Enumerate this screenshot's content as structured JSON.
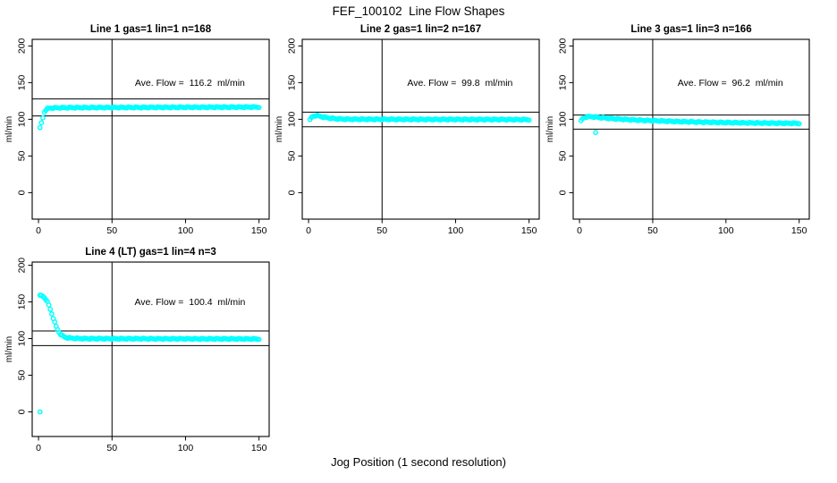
{
  "figure": {
    "title": "FEF_100102  Line Flow Shapes",
    "xlabel": "Jog Position (1 second resolution)",
    "background_color": "#ffffff",
    "axis_color": "#000000",
    "point_color": "#00ffff"
  },
  "chart_data": [
    {
      "type": "scatter",
      "title": "Line 1 gas=1 lin=1 n=168",
      "n": 168,
      "ave_flow_ml_min": 116.2,
      "annotation": "Ave. Flow =  116.2  ml/min",
      "annotation_pos": {
        "x": 103,
        "y": 150
      },
      "ylabel": "ml/min",
      "xticks": [
        0,
        50,
        100,
        150
      ],
      "yticks": [
        0,
        50,
        100,
        150,
        200
      ],
      "xlim": [
        -4.3,
        156.9
      ],
      "ylim": [
        -36.1,
        209.0
      ],
      "grid": false,
      "vline_x": 50,
      "hlines": [
        104.6,
        127.8
      ],
      "series_keypoints": [
        [
          1,
          88
        ],
        [
          3,
          102
        ],
        [
          4,
          110
        ],
        [
          5,
          113
        ],
        [
          6,
          114.5
        ],
        [
          8,
          115.3
        ],
        [
          10,
          115.6
        ],
        [
          15,
          115.8
        ],
        [
          20,
          115.9
        ],
        [
          30,
          116.0
        ],
        [
          40,
          116.1
        ],
        [
          50,
          116.1
        ],
        [
          60,
          116.2
        ],
        [
          70,
          116.2
        ],
        [
          80,
          116.3
        ],
        [
          90,
          116.3
        ],
        [
          100,
          116.4
        ],
        [
          110,
          116.4
        ],
        [
          120,
          116.5
        ],
        [
          130,
          116.5
        ],
        [
          140,
          116.6
        ],
        [
          150,
          116.7
        ]
      ],
      "outliers": []
    },
    {
      "type": "scatter",
      "title": "Line 2 gas=1 lin=2 n=167",
      "n": 167,
      "ave_flow_ml_min": 99.8,
      "annotation": "Ave. Flow =  99.8  ml/min",
      "annotation_pos": {
        "x": 103,
        "y": 150
      },
      "ylabel": "ml/min",
      "xticks": [
        0,
        50,
        100,
        150
      ],
      "yticks": [
        0,
        50,
        100,
        150,
        200
      ],
      "xlim": [
        -4.3,
        156.9
      ],
      "ylim": [
        -36.1,
        209.0
      ],
      "grid": false,
      "vline_x": 50,
      "hlines": [
        89.8,
        109.8
      ],
      "series_keypoints": [
        [
          1,
          99
        ],
        [
          2,
          102.5
        ],
        [
          3,
          104
        ],
        [
          4,
          104.8
        ],
        [
          5,
          105
        ],
        [
          6,
          104.8
        ],
        [
          7,
          104.4
        ],
        [
          8,
          104
        ],
        [
          9,
          103.5
        ],
        [
          10,
          103.1
        ],
        [
          12,
          102.4
        ],
        [
          14,
          101.8
        ],
        [
          16,
          101.3
        ],
        [
          18,
          100.9
        ],
        [
          20,
          100.6
        ],
        [
          25,
          100.2
        ],
        [
          30,
          100.1
        ],
        [
          40,
          100.0
        ],
        [
          50,
          100.0
        ],
        [
          60,
          99.9
        ],
        [
          70,
          99.9
        ],
        [
          80,
          99.8
        ],
        [
          90,
          99.8
        ],
        [
          100,
          99.8
        ],
        [
          110,
          99.7
        ],
        [
          120,
          99.7
        ],
        [
          130,
          99.7
        ],
        [
          140,
          99.6
        ],
        [
          150,
          99.6
        ]
      ],
      "outliers": []
    },
    {
      "type": "scatter",
      "title": "Line 3 gas=1 lin=3 n=166",
      "n": 166,
      "ave_flow_ml_min": 96.2,
      "annotation": "Ave. Flow =  96.2  ml/min",
      "annotation_pos": {
        "x": 103,
        "y": 150
      },
      "ylabel": "ml/min",
      "xticks": [
        0,
        50,
        100,
        150
      ],
      "yticks": [
        0,
        50,
        100,
        150,
        200
      ],
      "xlim": [
        -4.3,
        156.9
      ],
      "ylim": [
        -36.1,
        209.0
      ],
      "grid": false,
      "vline_x": 50,
      "hlines": [
        86.6,
        105.8
      ],
      "series_keypoints": [
        [
          1,
          97.5
        ],
        [
          2,
          100.5
        ],
        [
          3,
          102
        ],
        [
          4,
          102.8
        ],
        [
          5,
          103.3
        ],
        [
          7,
          103.6
        ],
        [
          9,
          103.4
        ],
        [
          11,
          103
        ],
        [
          13,
          102.6
        ],
        [
          15,
          102.2
        ],
        [
          20,
          101.3
        ],
        [
          25,
          100.6
        ],
        [
          30,
          100.0
        ],
        [
          35,
          99.4
        ],
        [
          40,
          98.9
        ],
        [
          45,
          98.5
        ],
        [
          50,
          98.1
        ],
        [
          55,
          97.8
        ],
        [
          60,
          97.4
        ],
        [
          65,
          97.1
        ],
        [
          70,
          96.8
        ],
        [
          75,
          96.6
        ],
        [
          80,
          96.3
        ],
        [
          85,
          96.1
        ],
        [
          90,
          95.9
        ],
        [
          95,
          95.7
        ],
        [
          100,
          95.6
        ],
        [
          105,
          95.4
        ],
        [
          110,
          95.3
        ],
        [
          115,
          95.1
        ],
        [
          120,
          95.0
        ],
        [
          125,
          94.9
        ],
        [
          130,
          94.8
        ],
        [
          135,
          94.7
        ],
        [
          140,
          94.6
        ],
        [
          145,
          94.6
        ],
        [
          150,
          94.5
        ]
      ],
      "outliers": [
        [
          11,
          82
        ]
      ]
    },
    {
      "type": "scatter",
      "title": "Line 4 (LT) gas=1 lin=4 n=3",
      "n": 3,
      "ave_flow_ml_min": 100.4,
      "annotation": "Ave. Flow =  100.4  ml/min",
      "annotation_pos": {
        "x": 103,
        "y": 150
      },
      "ylabel": "ml/min",
      "xticks": [
        0,
        50,
        100,
        150
      ],
      "yticks": [
        0,
        50,
        100,
        150,
        200
      ],
      "xlim": [
        -4.3,
        156.9
      ],
      "ylim": [
        -33.6,
        204.4
      ],
      "grid": false,
      "vline_x": 50,
      "hlines": [
        90.4,
        110.4
      ],
      "series_keypoints": [
        [
          1,
          158.5
        ],
        [
          2,
          158.5
        ],
        [
          3,
          157.5
        ],
        [
          4,
          156
        ],
        [
          5,
          153.5
        ],
        [
          6,
          150
        ],
        [
          7,
          145.5
        ],
        [
          8,
          140
        ],
        [
          9,
          134
        ],
        [
          10,
          128
        ],
        [
          11,
          122
        ],
        [
          12,
          116.5
        ],
        [
          13,
          112
        ],
        [
          14,
          108.5
        ],
        [
          15,
          106
        ],
        [
          16,
          104.2
        ],
        [
          17,
          102.9
        ],
        [
          18,
          102
        ],
        [
          19,
          101.4
        ],
        [
          20,
          101
        ],
        [
          22,
          100.6
        ],
        [
          24,
          100.4
        ],
        [
          26,
          100.2
        ],
        [
          28,
          100.1
        ],
        [
          30,
          100.0
        ],
        [
          35,
          99.9
        ],
        [
          40,
          99.9
        ],
        [
          50,
          99.8
        ],
        [
          60,
          99.8
        ],
        [
          70,
          99.8
        ],
        [
          80,
          99.7
        ],
        [
          90,
          99.7
        ],
        [
          100,
          99.7
        ],
        [
          110,
          99.6
        ],
        [
          120,
          99.6
        ],
        [
          130,
          99.6
        ],
        [
          140,
          99.5
        ],
        [
          150,
          99.5
        ]
      ],
      "outliers": [
        [
          1,
          0
        ]
      ]
    }
  ]
}
